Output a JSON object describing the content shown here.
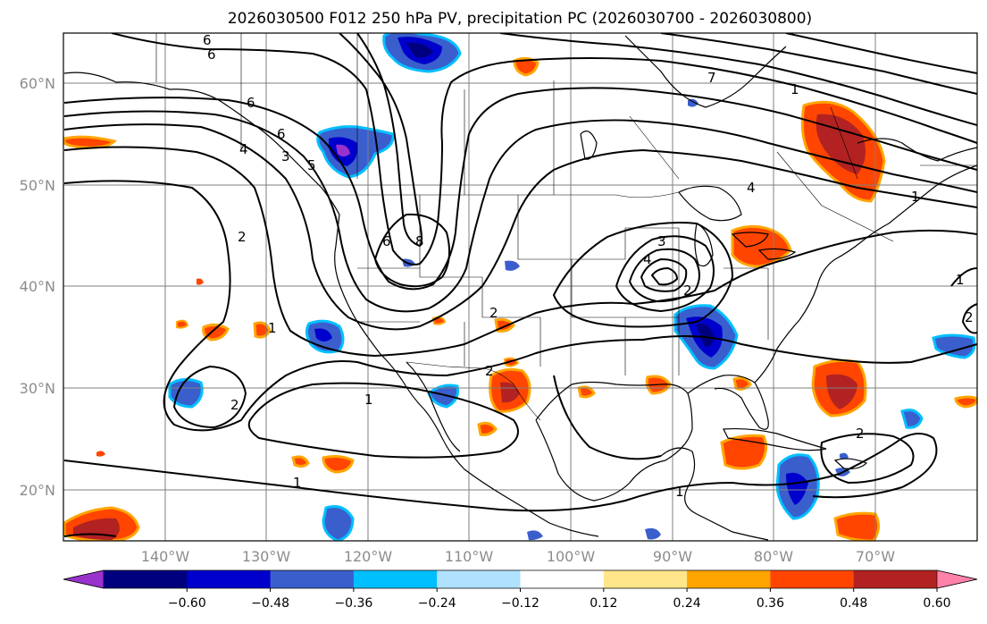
{
  "title": "2026030500 F012 250 hPa PV, precipitation PC (2026030700 - 2026030800)",
  "lat_labels": [
    "60°N",
    "50°N",
    "40°N",
    "30°N",
    "20°N"
  ],
  "lon_labels": [
    "140°W",
    "130°W",
    "120°W",
    "110°W",
    "100°W",
    "90°W",
    "80°W",
    "70°W"
  ],
  "colorbar": {
    "ticks": [
      "−0.60",
      "−0.48",
      "−0.36",
      "−0.24",
      "−0.12",
      "0.12",
      "0.24",
      "0.36",
      "0.48",
      "0.60"
    ],
    "colors": [
      "#9932cc",
      "#00007f",
      "#0000cd",
      "#3a5fcd",
      "#00bfff",
      "#b0e2ff",
      "#ffffff",
      "#ffe68a",
      "#ffa500",
      "#ff4500",
      "#b22222",
      "#ff82ab"
    ]
  },
  "pv_contour_labels": [
    "6",
    "6",
    "6",
    "5",
    "4",
    "3",
    "2",
    "2",
    "1",
    "2",
    "1",
    "2",
    "6",
    "8",
    "2",
    "3",
    "4",
    "1",
    "6",
    "7",
    "1",
    "4",
    "1",
    "2",
    "1",
    "1",
    "2"
  ],
  "map_extent": {
    "lon": [
      -150,
      -60
    ],
    "lat": [
      15,
      65
    ]
  }
}
